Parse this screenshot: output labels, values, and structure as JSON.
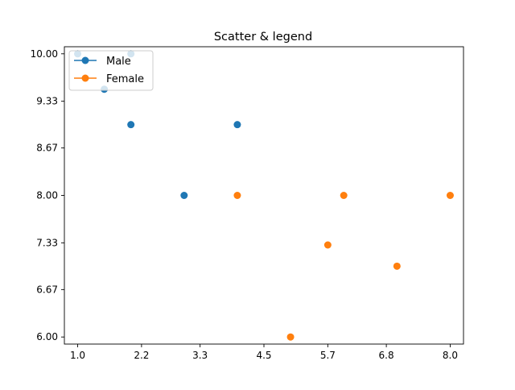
{
  "chart_data": {
    "type": "scatter",
    "title": "Scatter & legend",
    "xlabel": "",
    "ylabel": "",
    "xlim": [
      0.75,
      8.25
    ],
    "ylim": [
      5.9,
      10.1
    ],
    "x_ticks": [
      1.0,
      2.2,
      3.3,
      4.5,
      5.7,
      6.8,
      8.0
    ],
    "x_tick_labels": [
      "1.0",
      "2.2",
      "3.3",
      "4.5",
      "5.7",
      "6.8",
      "8.0"
    ],
    "y_ticks": [
      6.0,
      6.67,
      7.33,
      8.0,
      8.67,
      9.33,
      10.0
    ],
    "y_tick_labels": [
      "6.00",
      "6.67",
      "7.33",
      "8.00",
      "8.67",
      "9.33",
      "10.00"
    ],
    "grid": false,
    "legend_position": "upper left",
    "series": [
      {
        "name": "Male",
        "color": "#1f77b4",
        "points": [
          {
            "x": 1.0,
            "y": 10.0
          },
          {
            "x": 1.5,
            "y": 9.5
          },
          {
            "x": 2.0,
            "y": 10.0
          },
          {
            "x": 2.0,
            "y": 9.0
          },
          {
            "x": 3.0,
            "y": 8.0
          },
          {
            "x": 4.0,
            "y": 9.0
          }
        ]
      },
      {
        "name": "Female",
        "color": "#ff7f0e",
        "points": [
          {
            "x": 4.0,
            "y": 8.0
          },
          {
            "x": 5.0,
            "y": 6.0
          },
          {
            "x": 5.7,
            "y": 7.3
          },
          {
            "x": 6.0,
            "y": 8.0
          },
          {
            "x": 7.0,
            "y": 7.0
          },
          {
            "x": 8.0,
            "y": 8.0
          }
        ]
      }
    ]
  }
}
